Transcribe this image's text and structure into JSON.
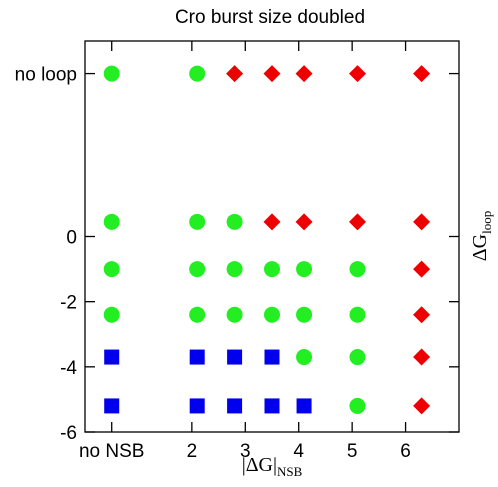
{
  "chart_data": {
    "type": "scatter",
    "title": "Cro burst size doubled",
    "xlabel": {
      "main": "|ΔG|",
      "sub": "NSB"
    },
    "ylabel": {
      "main": "ΔG",
      "sub": "loop"
    },
    "xlim": [
      0,
      7
    ],
    "ylim": [
      -6,
      6
    ],
    "x_ticks": [
      {
        "value": 0.5,
        "label": "no NSB"
      },
      {
        "value": 2,
        "label": "2"
      },
      {
        "value": 3,
        "label": "3"
      },
      {
        "value": 4,
        "label": "4"
      },
      {
        "value": 5,
        "label": "5"
      },
      {
        "value": 6,
        "label": "6"
      }
    ],
    "y_ticks": [
      {
        "value": 5.0,
        "label": "no loop"
      },
      {
        "value": 0,
        "label": "0"
      },
      {
        "value": -2,
        "label": "-2"
      },
      {
        "value": -4,
        "label": "-4"
      },
      {
        "value": -6,
        "label": "-6"
      }
    ],
    "marker_colors": {
      "circle": "#22ee22",
      "square": "#0000ee",
      "diamond": "#ee0000"
    },
    "points": [
      {
        "x": 0.5,
        "y": 5.0,
        "marker": "circle"
      },
      {
        "x": 2.1,
        "y": 5.0,
        "marker": "circle"
      },
      {
        "x": 2.8,
        "y": 5.0,
        "marker": "diamond"
      },
      {
        "x": 3.5,
        "y": 5.0,
        "marker": "diamond"
      },
      {
        "x": 4.1,
        "y": 5.0,
        "marker": "diamond"
      },
      {
        "x": 5.1,
        "y": 5.0,
        "marker": "diamond"
      },
      {
        "x": 6.3,
        "y": 5.0,
        "marker": "diamond"
      },
      {
        "x": 0.5,
        "y": 0.45,
        "marker": "circle"
      },
      {
        "x": 2.1,
        "y": 0.45,
        "marker": "circle"
      },
      {
        "x": 2.8,
        "y": 0.45,
        "marker": "circle"
      },
      {
        "x": 3.5,
        "y": 0.45,
        "marker": "diamond"
      },
      {
        "x": 4.1,
        "y": 0.45,
        "marker": "diamond"
      },
      {
        "x": 5.1,
        "y": 0.45,
        "marker": "diamond"
      },
      {
        "x": 6.3,
        "y": 0.45,
        "marker": "diamond"
      },
      {
        "x": 0.5,
        "y": -1.0,
        "marker": "circle"
      },
      {
        "x": 2.1,
        "y": -1.0,
        "marker": "circle"
      },
      {
        "x": 2.8,
        "y": -1.0,
        "marker": "circle"
      },
      {
        "x": 3.5,
        "y": -1.0,
        "marker": "circle"
      },
      {
        "x": 4.1,
        "y": -1.0,
        "marker": "circle"
      },
      {
        "x": 5.1,
        "y": -1.0,
        "marker": "circle"
      },
      {
        "x": 6.3,
        "y": -1.0,
        "marker": "diamond"
      },
      {
        "x": 0.5,
        "y": -2.4,
        "marker": "circle"
      },
      {
        "x": 2.1,
        "y": -2.4,
        "marker": "circle"
      },
      {
        "x": 2.8,
        "y": -2.4,
        "marker": "circle"
      },
      {
        "x": 3.5,
        "y": -2.4,
        "marker": "circle"
      },
      {
        "x": 4.1,
        "y": -2.4,
        "marker": "circle"
      },
      {
        "x": 5.1,
        "y": -2.4,
        "marker": "circle"
      },
      {
        "x": 6.3,
        "y": -2.4,
        "marker": "diamond"
      },
      {
        "x": 0.5,
        "y": -3.7,
        "marker": "square"
      },
      {
        "x": 2.1,
        "y": -3.7,
        "marker": "square"
      },
      {
        "x": 2.8,
        "y": -3.7,
        "marker": "square"
      },
      {
        "x": 3.5,
        "y": -3.7,
        "marker": "square"
      },
      {
        "x": 4.1,
        "y": -3.7,
        "marker": "circle"
      },
      {
        "x": 5.1,
        "y": -3.7,
        "marker": "circle"
      },
      {
        "x": 6.3,
        "y": -3.7,
        "marker": "diamond"
      },
      {
        "x": 0.5,
        "y": -5.2,
        "marker": "square"
      },
      {
        "x": 2.1,
        "y": -5.2,
        "marker": "square"
      },
      {
        "x": 2.8,
        "y": -5.2,
        "marker": "square"
      },
      {
        "x": 3.5,
        "y": -5.2,
        "marker": "square"
      },
      {
        "x": 4.1,
        "y": -5.2,
        "marker": "square"
      },
      {
        "x": 5.1,
        "y": -5.2,
        "marker": "circle"
      },
      {
        "x": 6.3,
        "y": -5.2,
        "marker": "diamond"
      }
    ]
  }
}
